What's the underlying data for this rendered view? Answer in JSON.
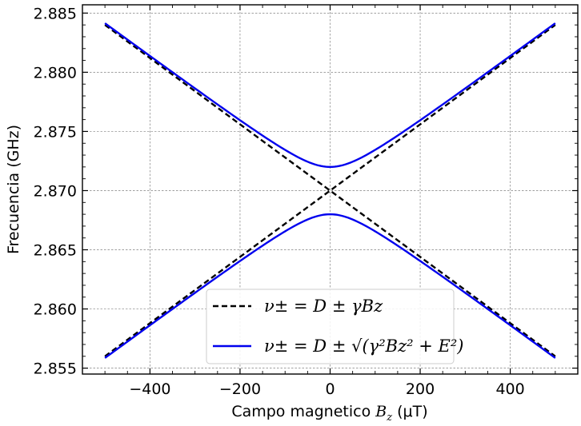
{
  "chart_data": {
    "type": "line",
    "xlabel": "Campo magnetico B_z (μT)",
    "xlabel_parts": {
      "prefix": "Campo magnetico ",
      "var": "B",
      "sub": "z",
      "suffix": " (μT)"
    },
    "ylabel": "Frecuencia (GHz)",
    "xlim": [
      -550,
      550
    ],
    "ylim": [
      2.8545,
      2.8857
    ],
    "xticks": [
      -400,
      -200,
      0,
      200,
      400
    ],
    "xtick_labels": [
      "−400",
      "−200",
      "0",
      "200",
      "400"
    ],
    "yticks": [
      2.855,
      2.86,
      2.865,
      2.87,
      2.875,
      2.88,
      2.885
    ],
    "ytick_labels": [
      "2.855",
      "2.860",
      "2.865",
      "2.870",
      "2.875",
      "2.880",
      "2.885"
    ],
    "grid": true,
    "legend_position": "lower-center",
    "params": {
      "D": 2.87,
      "gamma": 2.8e-05,
      "E": 0.002,
      "x_range": [
        -500,
        500
      ]
    },
    "series": [
      {
        "name": "ν± = D ± γBz",
        "style": "dashed",
        "color": "#000000",
        "branch": "upper",
        "x": [
          -500,
          -250,
          0,
          250,
          500
        ],
        "y": [
          2.884,
          2.877,
          2.87,
          2.863,
          2.856
        ]
      },
      {
        "name": "ν± = D ± γBz",
        "style": "dashed",
        "color": "#000000",
        "branch": "lower",
        "x": [
          -500,
          -250,
          0,
          250,
          500
        ],
        "y": [
          2.856,
          2.863,
          2.87,
          2.877,
          2.884
        ]
      },
      {
        "name": "ν± = D ± √(γ²Bz² + E²)",
        "style": "solid",
        "color": "#0000ee",
        "branch": "upper",
        "x": [
          -500,
          -250,
          0,
          250,
          500
        ],
        "y": [
          2.8841,
          2.8772,
          2.872,
          2.8772,
          2.8841
        ]
      },
      {
        "name": "ν± = D ± √(γ²Bz² + E²)",
        "style": "solid",
        "color": "#0000ee",
        "branch": "lower",
        "x": [
          -500,
          -250,
          0,
          250,
          500
        ],
        "y": [
          2.8559,
          2.8628,
          2.868,
          2.8628,
          2.8559
        ]
      }
    ]
  }
}
